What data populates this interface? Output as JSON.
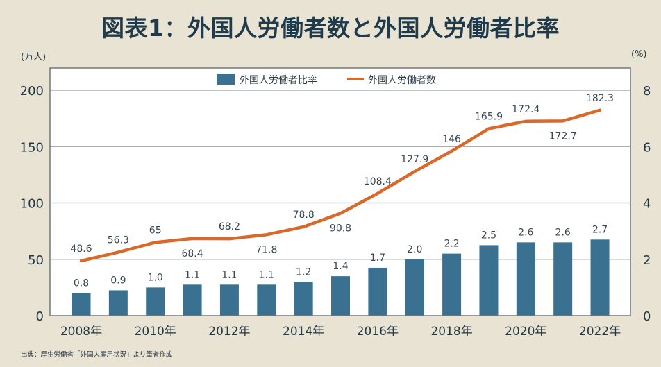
{
  "title": "図表1：外国人労働者数と外国人労働者比率",
  "source_note": "出典：厚生労働省「外国人雇用状況」より筆者作成",
  "colors": {
    "background": "#e9e3d3",
    "plot_background": "#ffffff",
    "bar": "#3a7190",
    "line": "#d8692a",
    "grid": "#9aa3a8",
    "text": "#243744"
  },
  "chart_data": {
    "type": "bar+line",
    "title": "図表1：外国人労働者数と外国人労働者比率",
    "categories": [
      "2008",
      "2009",
      "2010",
      "2011",
      "2012",
      "2013",
      "2014",
      "2015",
      "2016",
      "2017",
      "2018",
      "2019",
      "2020",
      "2021",
      "2022"
    ],
    "x_tick_labels": [
      {
        "index": 0,
        "label": "2008年"
      },
      {
        "index": 2,
        "label": "2010年"
      },
      {
        "index": 4,
        "label": "2012年"
      },
      {
        "index": 6,
        "label": "2014年"
      },
      {
        "index": 8,
        "label": "2016年"
      },
      {
        "index": 10,
        "label": "2018年"
      },
      {
        "index": 12,
        "label": "2020年"
      },
      {
        "index": 14,
        "label": "2022年"
      }
    ],
    "left_axis": {
      "unit_label": "(万人)",
      "range": [
        0,
        200
      ],
      "ticks": [
        0,
        50,
        100,
        150,
        200
      ]
    },
    "right_axis": {
      "unit_label": "(%)",
      "range": [
        0,
        8
      ],
      "ticks": [
        0,
        2,
        4,
        6,
        8
      ]
    },
    "grid": true,
    "legend_position": "top-center",
    "series": [
      {
        "name": "外国人労働者比率",
        "type": "bar",
        "axis": "right",
        "values": [
          0.8,
          0.9,
          1.0,
          1.1,
          1.1,
          1.1,
          1.2,
          1.4,
          1.7,
          2.0,
          2.2,
          2.5,
          2.6,
          2.6,
          2.7
        ],
        "labels": [
          "0.8",
          "0.9",
          "1.0",
          "1.1",
          "1.1",
          "1.1",
          "1.2",
          "1.4",
          "1.7",
          "2.0",
          "2.2",
          "2.5",
          "2.6",
          "2.6",
          "2.7"
        ]
      },
      {
        "name": "外国人労働者数",
        "type": "line",
        "axis": "left",
        "values": [
          48.6,
          56.3,
          65,
          68.4,
          68.2,
          71.8,
          78.8,
          90.8,
          108.4,
          127.9,
          146,
          165.9,
          172.4,
          172.7,
          182.3
        ],
        "labels": [
          "48.6",
          "56.3",
          "65",
          "68.4",
          "68.2",
          "71.8",
          "78.8",
          "90.8",
          "108.4",
          "127.9",
          "146",
          "165.9",
          "172.4",
          "172.7",
          "182.3"
        ],
        "label_position": [
          "above",
          "above",
          "above",
          "below",
          "above",
          "below",
          "above",
          "below",
          "above",
          "above",
          "above",
          "above",
          "above",
          "below",
          "above"
        ]
      }
    ]
  }
}
